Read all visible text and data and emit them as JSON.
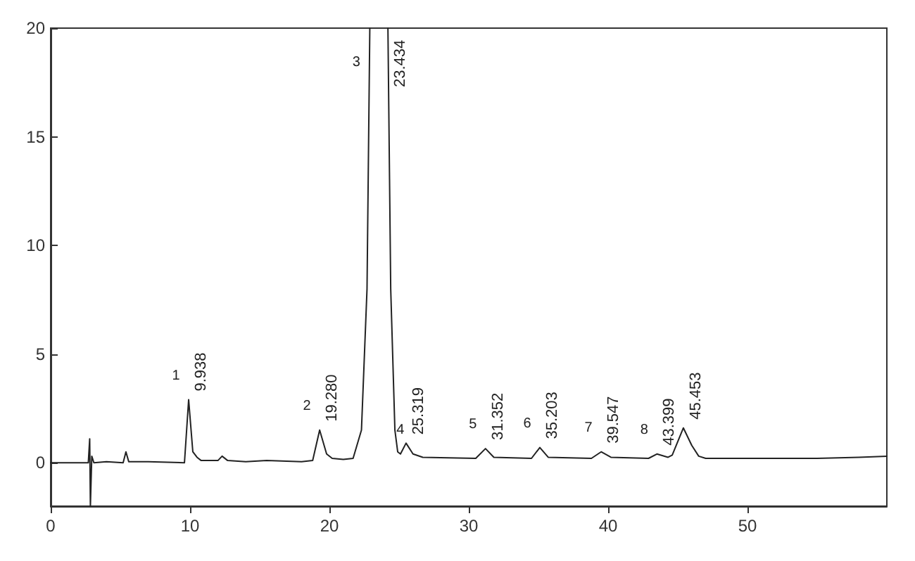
{
  "chart_data": {
    "type": "line",
    "x": [
      0,
      2.7,
      2.8,
      2.85,
      2.95,
      3.1,
      4,
      5.2,
      5.4,
      5.6,
      7,
      9.6,
      9.9,
      10.2,
      10.5,
      10.8,
      12,
      12.3,
      12.7,
      14,
      15.5,
      18,
      18.8,
      19.3,
      19.8,
      20.2,
      21,
      21.7,
      22.3,
      22.7,
      22.9,
      23.5,
      24.2,
      24.4,
      24.7,
      24.9,
      25.1,
      25.5,
      26,
      26.7,
      30.5,
      31.2,
      31.8,
      34.5,
      35.1,
      35.7,
      38.8,
      39.5,
      40.2,
      42.9,
      43.5,
      44.3,
      44.6,
      45.4,
      46,
      46.5,
      47,
      50,
      55,
      58,
      60
    ],
    "series": [
      {
        "color": "#222222",
        "values": [
          0,
          0,
          1.1,
          -2,
          0.3,
          0,
          0.05,
          0,
          0.5,
          0.05,
          0.05,
          0,
          2.9,
          0.5,
          0.25,
          0.1,
          0.1,
          0.3,
          0.1,
          0.05,
          0.1,
          0.05,
          0.1,
          1.5,
          0.4,
          0.2,
          0.15,
          0.2,
          1.5,
          8,
          20,
          null,
          20,
          8,
          1.5,
          0.5,
          0.4,
          0.9,
          0.4,
          0.25,
          0.2,
          0.65,
          0.25,
          0.2,
          0.7,
          0.25,
          0.2,
          0.5,
          0.25,
          0.2,
          0.4,
          0.25,
          0.35,
          1.6,
          0.8,
          0.3,
          0.2,
          0.2,
          0.2,
          0.25,
          0.3
        ]
      }
    ],
    "xlim": [
      0,
      60
    ],
    "xticks": [
      0,
      10,
      20,
      30,
      40,
      50
    ],
    "ylim": [
      -2,
      20
    ],
    "yticks": [
      0,
      5,
      10,
      15,
      20
    ],
    "grid": false,
    "marker": "none",
    "line_style": "solid",
    "annotations": [
      {
        "text": "1",
        "x": 9.9,
        "y": 2.9
      },
      {
        "text": "9.938",
        "x": 9.9,
        "y": 2.9
      },
      {
        "text": "2",
        "x": 19.3,
        "y": 1.5
      },
      {
        "text": "19.280",
        "x": 19.3,
        "y": 1.5
      },
      {
        "text": "3",
        "x": 22.85,
        "y": 17.3
      },
      {
        "text": "23.434",
        "x": 24.2,
        "y": 20
      },
      {
        "text": "4",
        "x": 26.0,
        "y": 0.4
      },
      {
        "text": "25.319",
        "x": 25.5,
        "y": 0.9
      },
      {
        "text": "5",
        "x": 31.2,
        "y": 0.65
      },
      {
        "text": "31.352",
        "x": 31.2,
        "y": 0.65
      },
      {
        "text": "6",
        "x": 35.1,
        "y": 0.7
      },
      {
        "text": "35.203",
        "x": 35.1,
        "y": 0.7
      },
      {
        "text": "7",
        "x": 39.5,
        "y": 0.5
      },
      {
        "text": "39.547",
        "x": 39.5,
        "y": 0.5
      },
      {
        "text": "8",
        "x": 43.5,
        "y": 0.4
      },
      {
        "text": "43.399",
        "x": 43.5,
        "y": 0.4
      },
      {
        "text": "45.453",
        "x": 45.4,
        "y": 1.6
      }
    ]
  }
}
